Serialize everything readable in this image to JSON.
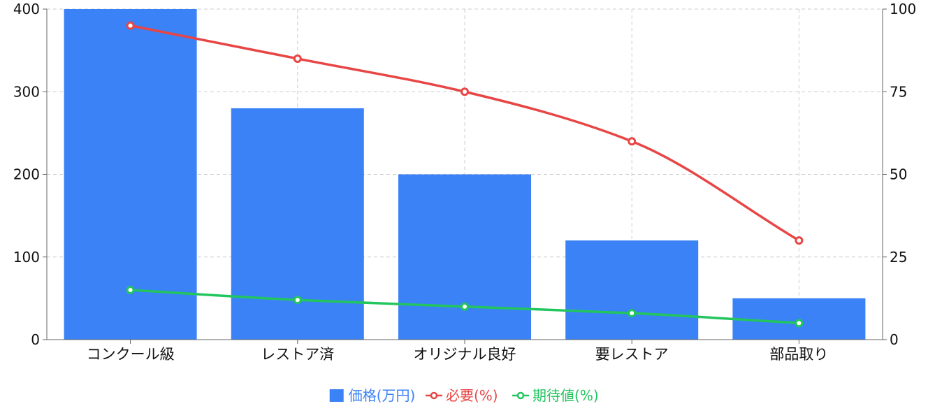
{
  "chart_data": {
    "type": "bar",
    "categories": [
      "コンクール級",
      "レストア済",
      "オリジナル良好",
      "要レストア",
      "部品取り"
    ],
    "series": [
      {
        "name": "価格(万円)",
        "type": "bar",
        "axis": "left",
        "color": "#3b82f6",
        "values": [
          400,
          280,
          200,
          120,
          50
        ]
      },
      {
        "name": "必要(%)",
        "type": "line",
        "axis": "right",
        "color": "#e84545",
        "values": [
          95,
          85,
          75,
          60,
          30
        ]
      },
      {
        "name": "期待値(%)",
        "type": "line",
        "axis": "right",
        "color": "#22c55e",
        "values": [
          15,
          12,
          10,
          8,
          5
        ]
      }
    ],
    "y_left": {
      "ylim": [
        0,
        400
      ],
      "ticks": [
        0,
        100,
        200,
        300,
        400
      ]
    },
    "y_right": {
      "ylim": [
        0,
        100
      ],
      "ticks": [
        0,
        25,
        50,
        75,
        100
      ]
    },
    "grid": true,
    "legend_position": "bottom-center"
  }
}
